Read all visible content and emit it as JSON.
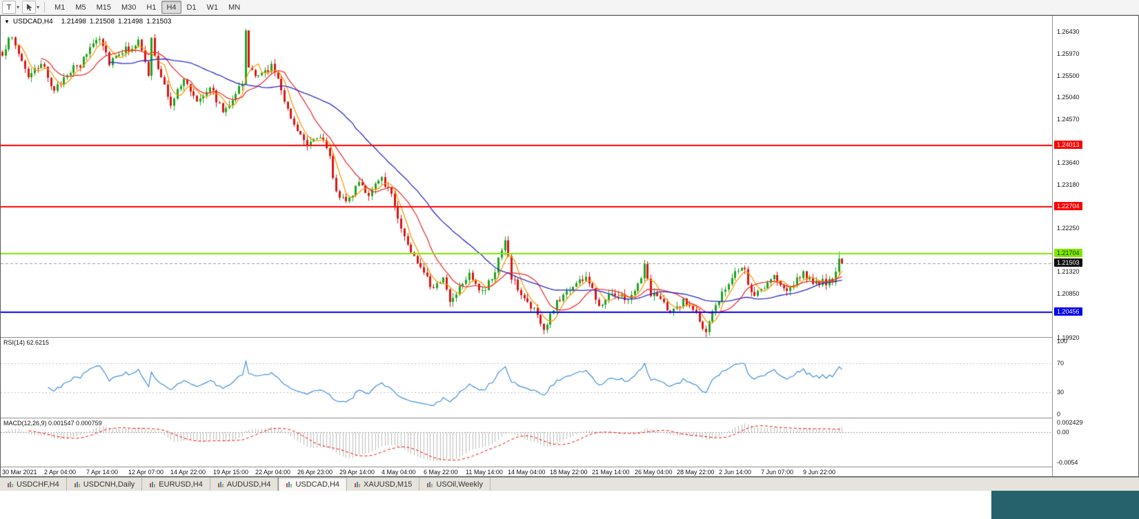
{
  "toolbar": {
    "tool_button_label": "T",
    "timeframes": [
      "M1",
      "M5",
      "M15",
      "M30",
      "H1",
      "H4",
      "D1",
      "W1",
      "MN"
    ],
    "active_timeframe": "H4"
  },
  "chart": {
    "header": {
      "collapse_icon": "▼",
      "symbol": "USDCAD,H4",
      "open": "1.21498",
      "high": "1.21508",
      "low": "1.21498",
      "close": "1.21503"
    },
    "price_axis_ticks": [
      "1.26430",
      "1.25970",
      "1.25500",
      "1.25040",
      "1.24570",
      "1.23640",
      "1.23180",
      "1.22250",
      "1.21320",
      "1.20850",
      "1.19920"
    ],
    "levels": [
      {
        "label": "1.24013",
        "price": 1.24013,
        "line_color": "#FF0000",
        "label_bg": "#FF0000",
        "label_text": "#FFFFFF"
      },
      {
        "label": "1.22704",
        "price": 1.22704,
        "line_color": "#FF0000",
        "label_bg": "#FF0000",
        "label_text": "#FFFFFF"
      },
      {
        "label": "1.21704",
        "price": 1.21704,
        "line_color": "#7FE800",
        "label_bg": "#7FE800",
        "label_text": "#073800"
      },
      {
        "label": "1.20456",
        "price": 1.20456,
        "line_color": "#0000FF",
        "label_bg": "#0000F0",
        "label_text": "#FFFFFF"
      }
    ],
    "current_price": {
      "label": "1.21503",
      "price": 1.21503,
      "label_bg": "#0c0c0c",
      "label_text": "#FFFFFF"
    },
    "time_axis_labels": [
      "30 Mar 2021",
      "2 Apr 04:00",
      "7 Apr 14:00",
      "12 Apr 07:00",
      "14 Apr 22:00",
      "19 Apr 15:00",
      "22 Apr 04:00",
      "26 Apr 23:00",
      "29 Apr 14:00",
      "4 May 04:00",
      "6 May 22:00",
      "11 May 14:00",
      "14 May 04:00",
      "18 May 22:00",
      "21 May 14:00",
      "26 May 04:00",
      "28 May 22:00",
      "2 Jun 14:00",
      "7 Jun 07:00",
      "9 Jun 22:00"
    ]
  },
  "rsi": {
    "name_label": "RSI(14) 62.6215",
    "ticks": [
      "100",
      "70",
      "30",
      "0"
    ],
    "levels": [
      70,
      30
    ],
    "line_color": "#3E8EDE"
  },
  "macd": {
    "name_label": "MACD(12,26,9) 0.001547 0.000759",
    "ticks": [
      "0.002429",
      "0.00",
      "-0.0054"
    ],
    "histogram_color": "#BBBBBB",
    "signal_color": "#FF0000"
  },
  "tabs": {
    "items": [
      "USDCHF,H4",
      "USDCNH,Daily",
      "EURUSD,H4",
      "AUDUSD,H4",
      "USDCAD,H4",
      "XAUUSD,M15",
      "USOil,Weekly"
    ],
    "active": "USDCAD,H4"
  },
  "window": {
    "taskbar_color": "#25626B"
  },
  "chart_data": {
    "type": "candlestick",
    "symbol": "USDCAD",
    "timeframe": "H4",
    "visible_range": {
      "start": "30 Mar 2021",
      "end": "10 Jun 2021"
    },
    "price_range": [
      1.1993,
      1.2677
    ],
    "candles_count": 260,
    "colors": {
      "bull": "#1CA51C",
      "bear": "#DC1414"
    },
    "price_path_anchors": [
      [
        0,
        1.2585
      ],
      [
        2,
        1.2638
      ],
      [
        5,
        1.2598
      ],
      [
        8,
        1.255
      ],
      [
        11,
        1.2562
      ],
      [
        13,
        1.2572
      ],
      [
        16,
        1.2512
      ],
      [
        20,
        1.2558
      ],
      [
        24,
        1.257
      ],
      [
        27,
        1.2612
      ],
      [
        30,
        1.2635
      ],
      [
        33,
        1.258
      ],
      [
        36,
        1.26
      ],
      [
        39,
        1.2608
      ],
      [
        42,
        1.2622
      ],
      [
        45,
        1.2552
      ],
      [
        46,
        1.2628
      ],
      [
        48,
        1.256
      ],
      [
        52,
        1.2492
      ],
      [
        56,
        1.254
      ],
      [
        60,
        1.2498
      ],
      [
        64,
        1.2528
      ],
      [
        68,
        1.2472
      ],
      [
        72,
        1.2515
      ],
      [
        74,
        1.2532
      ],
      [
        75,
        1.264
      ],
      [
        76,
        1.2568
      ],
      [
        79,
        1.2545
      ],
      [
        83,
        1.2572
      ],
      [
        86,
        1.252
      ],
      [
        90,
        1.2445
      ],
      [
        94,
        1.2408
      ],
      [
        98,
        1.2425
      ],
      [
        101,
        1.2372
      ],
      [
        103,
        1.2302
      ],
      [
        107,
        1.2282
      ],
      [
        110,
        1.233
      ],
      [
        113,
        1.2292
      ],
      [
        117,
        1.2332
      ],
      [
        120,
        1.2298
      ],
      [
        124,
        1.2205
      ],
      [
        127,
        1.2162
      ],
      [
        130,
        1.2138
      ],
      [
        133,
        1.2092
      ],
      [
        136,
        1.2122
      ],
      [
        138,
        1.2068
      ],
      [
        141,
        1.2102
      ],
      [
        144,
        1.2132
      ],
      [
        148,
        1.2085
      ],
      [
        151,
        1.2118
      ],
      [
        155,
        1.2196
      ],
      [
        157,
        1.2122
      ],
      [
        160,
        1.2082
      ],
      [
        164,
        1.2052
      ],
      [
        167,
        1.2006
      ],
      [
        171,
        1.2068
      ],
      [
        175,
        1.2098
      ],
      [
        180,
        1.2122
      ],
      [
        184,
        1.2062
      ],
      [
        188,
        1.2092
      ],
      [
        192,
        1.2075
      ],
      [
        195,
        1.2088
      ],
      [
        198,
        1.2142
      ],
      [
        200,
        1.2088
      ],
      [
        203,
        1.2072
      ],
      [
        206,
        1.2042
      ],
      [
        210,
        1.2072
      ],
      [
        214,
        1.2042
      ],
      [
        217,
        1.1998
      ],
      [
        220,
        1.2062
      ],
      [
        223,
        1.2102
      ],
      [
        226,
        1.2128
      ],
      [
        229,
        1.2135
      ],
      [
        231,
        1.2082
      ],
      [
        234,
        1.2092
      ],
      [
        238,
        1.2122
      ],
      [
        241,
        1.209
      ],
      [
        244,
        1.2108
      ],
      [
        247,
        1.2132
      ],
      [
        250,
        1.2102
      ],
      [
        253,
        1.2112
      ],
      [
        256,
        1.2108
      ],
      [
        257,
        1.2128
      ],
      [
        258,
        1.216
      ],
      [
        259,
        1.21503
      ]
    ],
    "pinned_closes": {
      "258": 1.216,
      "259": 1.21503
    },
    "pinned_highs": {
      "258": 1.21748
    },
    "noise_amplitude": 0.0016,
    "levels": [
      1.24013,
      1.22704,
      1.21704,
      1.20456
    ],
    "current_price": 1.21503,
    "moving_averages": [
      {
        "period": 5,
        "color": "#FF9900"
      },
      {
        "period": 13,
        "color": "#F03030"
      },
      {
        "period": 34,
        "color": "#2828C8"
      }
    ],
    "rsi": {
      "period": 14,
      "current": 62.6215,
      "overbought": 70,
      "oversold": 30
    },
    "macd": {
      "fast": 12,
      "slow": 26,
      "signal_period": 9,
      "current_macd": 0.001547,
      "current_signal": 0.000759
    }
  }
}
